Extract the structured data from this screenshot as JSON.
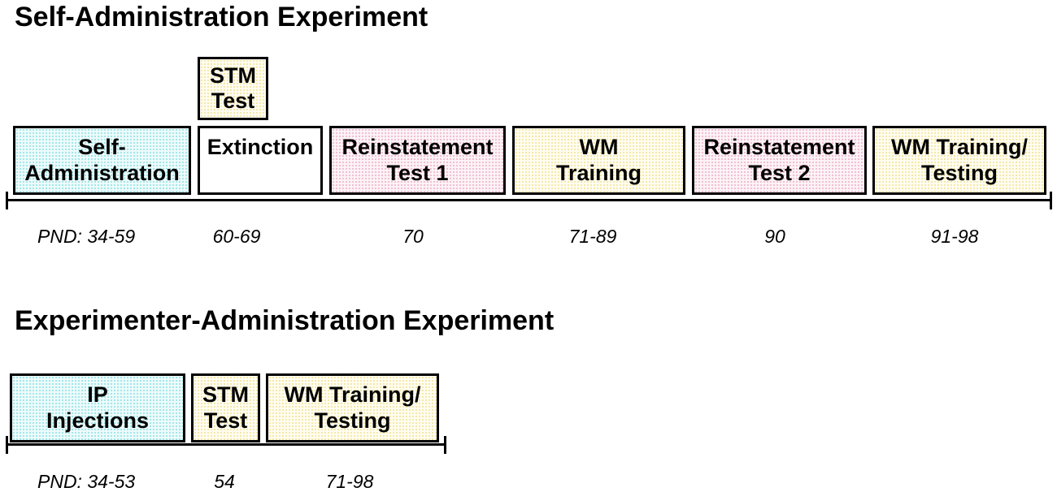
{
  "self_admin": {
    "title": "Self-Administration Experiment",
    "phases": {
      "self_administration": {
        "line1": "Self-",
        "line2": "Administration"
      },
      "stm_test": {
        "line1": "STM",
        "line2": "Test"
      },
      "extinction": {
        "line1": "Extinction"
      },
      "reinstatement_1": {
        "line1": "Reinstatement",
        "line2": "Test 1"
      },
      "wm_training": {
        "line1": "WM",
        "line2": "Training"
      },
      "reinstatement_2": {
        "line1": "Reinstatement",
        "line2": "Test 2"
      },
      "wm_training_testing": {
        "line1": "WM Training/",
        "line2": "Testing"
      }
    },
    "pnd": [
      "PND: 34-59",
      "60-69",
      "70",
      "71-89",
      "90",
      "91-98"
    ]
  },
  "experimenter_admin": {
    "title": "Experimenter-Administration Experiment",
    "phases": {
      "ip_injections": {
        "line1": "IP",
        "line2": "Injections"
      },
      "stm_test": {
        "line1": "STM",
        "line2": "Test"
      },
      "wm_training_testing": {
        "line1": "WM Training/",
        "line2": "Testing"
      }
    },
    "pnd": [
      "PND: 34-53",
      "54",
      "71-98"
    ]
  },
  "colors": {
    "self_administration": "#9fe6e8",
    "reinstatement": "#f0bcd0",
    "wm_training": "#f4e7a6",
    "outline": "#000000"
  }
}
